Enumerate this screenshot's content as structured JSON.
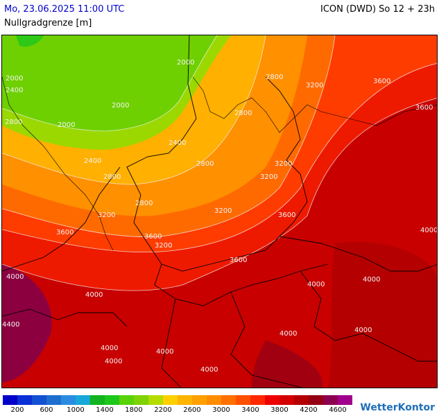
{
  "header": {
    "datetime": "Mo, 23.06.2025 11:00 UTC",
    "variable": "Nullgradgrenze [m]",
    "model_run": "ICON (DWD) So 12 + 23h"
  },
  "legend": {
    "colors": [
      "#0000c8",
      "#0a2fd6",
      "#1450d2",
      "#1e6ed0",
      "#2a8ce0",
      "#16a8d8",
      "#13b41e",
      "#1ec81a",
      "#5ad20a",
      "#7ed206",
      "#b4dc00",
      "#ffd000",
      "#ffb400",
      "#ffa000",
      "#ff8c00",
      "#ff7000",
      "#ff5000",
      "#ff2800",
      "#ee0000",
      "#d40000",
      "#b40000",
      "#960014",
      "#8c0050",
      "#a0008c"
    ],
    "tick_labels": [
      "200",
      "600",
      "1000",
      "1400",
      "1800",
      "2200",
      "2600",
      "3000",
      "3400",
      "3800",
      "4200",
      "4600"
    ]
  },
  "isoline_labels": [
    "2000",
    "2400",
    "2800",
    "3200",
    "3600",
    "4000",
    "4400"
  ],
  "brand": "WetterKontor"
}
